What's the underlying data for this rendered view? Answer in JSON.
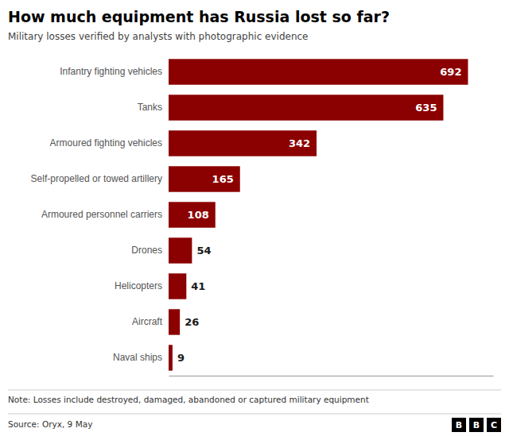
{
  "chart_data": {
    "type": "bar",
    "orientation": "horizontal",
    "title": "How much equipment has Russia lost so far?",
    "subtitle": "Military losses verified by analysts with photographic evidence",
    "note": "Note: Losses include destroyed, damaged, abandoned or captured military equipment",
    "source": "Source: Oryx, 9 May",
    "annotations": [
      "B",
      "B",
      "C"
    ],
    "categories": [
      "Infantry fighting vehicles",
      "Tanks",
      "Armoured fighting vehicles",
      "Self-propelled or towed artillery",
      "Armoured personnel carriers",
      "Drones",
      "Helicopters",
      "Aircraft",
      "Naval ships"
    ],
    "values": [
      692,
      635,
      342,
      165,
      108,
      54,
      41,
      26,
      9
    ],
    "color": "#8B0000",
    "xlim": [
      0,
      750
    ],
    "data_labels": true,
    "tick_labels": "y",
    "grid": false
  }
}
